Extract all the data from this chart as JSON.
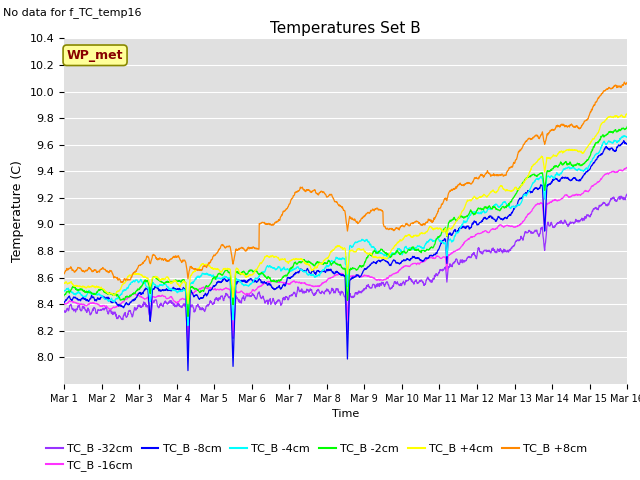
{
  "title": "Temperatures Set B",
  "subtitle": "No data for f_TC_temp16",
  "xlabel": "Time",
  "ylabel": "Temperature (C)",
  "ylim": [
    7.8,
    10.4
  ],
  "yticks": [
    8.0,
    8.2,
    8.4,
    8.6,
    8.8,
    9.0,
    9.2,
    9.4,
    9.6,
    9.8,
    10.0,
    10.2,
    10.4
  ],
  "date_labels": [
    "Mar 1",
    "Mar 2",
    "Mar 3",
    "Mar 4",
    "Mar 5",
    "Mar 6",
    "Mar 7",
    "Mar 8",
    "Mar 9",
    "Mar 10",
    "Mar 11",
    "Mar 12",
    "Mar 13",
    "Mar 14",
    "Mar 15",
    "Mar 16"
  ],
  "series": [
    {
      "label": "TC_B -32cm",
      "color": "#9933FF"
    },
    {
      "label": "TC_B -16cm",
      "color": "#FF33FF"
    },
    {
      "label": "TC_B -8cm",
      "color": "#0000FF"
    },
    {
      "label": "TC_B -4cm",
      "color": "#00FFFF"
    },
    {
      "label": "TC_B -2cm",
      "color": "#00FF00"
    },
    {
      "label": "TC_B +4cm",
      "color": "#FFFF00"
    },
    {
      "label": "TC_B +8cm",
      "color": "#FF8800"
    }
  ],
  "wp_met_box_facecolor": "#FFFF99",
  "wp_met_box_edgecolor": "#888800",
  "wp_met_text_color": "#880000",
  "plot_bg": "#E0E0E0",
  "grid_color": "#FFFFFF",
  "n_points": 2000
}
